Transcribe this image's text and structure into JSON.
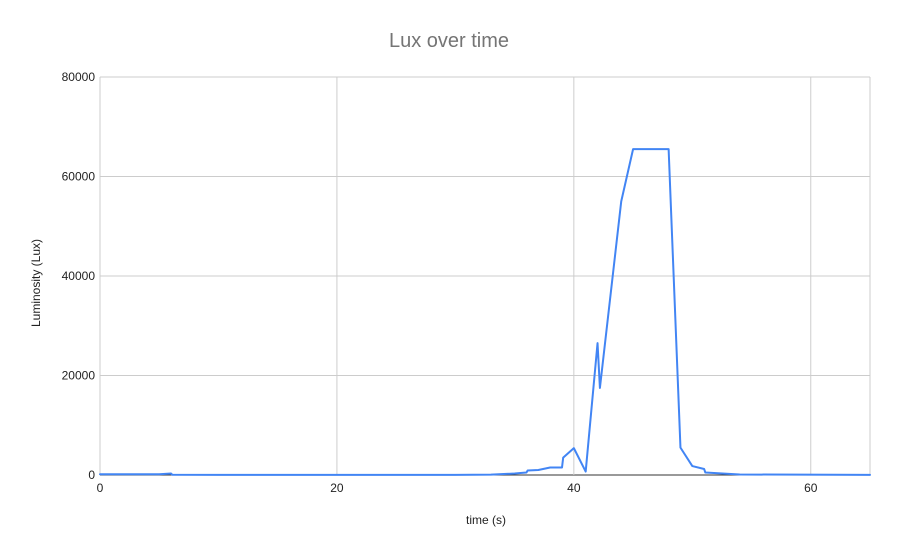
{
  "chart_data": {
    "type": "line",
    "title": "Lux over time",
    "xlabel": "time (s)",
    "ylabel": "Luminosity (Lux)",
    "xlim": [
      0,
      65
    ],
    "ylim": [
      0,
      80000
    ],
    "x_ticks": [
      0,
      20,
      40,
      60
    ],
    "y_ticks": [
      0,
      20000,
      40000,
      60000,
      80000
    ],
    "grid": true,
    "line_color": "#4285f4",
    "series": [
      {
        "points": [
          [
            0,
            150
          ],
          [
            5,
            150
          ],
          [
            6,
            300
          ],
          [
            6.1,
            50
          ],
          [
            10,
            30
          ],
          [
            20,
            30
          ],
          [
            30,
            30
          ],
          [
            33,
            80
          ],
          [
            35,
            300
          ],
          [
            36,
            500
          ],
          [
            36.1,
            900
          ],
          [
            37,
            1000
          ],
          [
            38,
            1500
          ],
          [
            39,
            1500
          ],
          [
            39.1,
            3500
          ],
          [
            40,
            5400
          ],
          [
            41,
            700
          ],
          [
            42,
            26500
          ],
          [
            42.2,
            17500
          ],
          [
            44,
            55000
          ],
          [
            45,
            65500
          ],
          [
            48,
            65500
          ],
          [
            49,
            5500
          ],
          [
            50,
            1800
          ],
          [
            51,
            1200
          ],
          [
            51.1,
            500
          ],
          [
            54,
            100
          ],
          [
            65,
            30
          ]
        ]
      }
    ]
  }
}
